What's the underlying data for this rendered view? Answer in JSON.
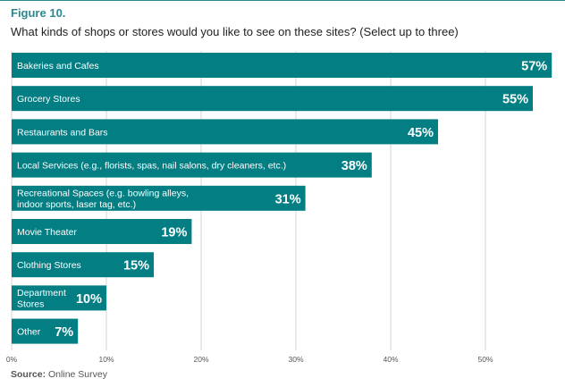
{
  "header": {
    "figure_label": "Figure 10.",
    "question": "What kinds of shops or stores would you like to see on these sites? (Select up to three)"
  },
  "source": {
    "label": "Source:",
    "text": "Online Survey"
  },
  "colors": {
    "bar": "#037f84",
    "accent": "#2a8a8f",
    "gridline": "#d6d6d6",
    "bar_text": "#ffffff"
  },
  "chart_data": {
    "type": "bar",
    "orientation": "horizontal",
    "title": "",
    "xlabel": "",
    "ylabel": "",
    "xlim": [
      0,
      57
    ],
    "x_ticks": [
      0,
      10,
      20,
      30,
      40,
      50
    ],
    "x_tick_labels": [
      "0%",
      "10%",
      "20%",
      "30%",
      "40%",
      "50%"
    ],
    "grid": true,
    "categories": [
      [
        "Bakeries and Cafes"
      ],
      [
        "Grocery Stores"
      ],
      [
        "Restaurants and Bars"
      ],
      [
        "Local Services (e.g., florists, spas, nail salons, dry cleaners, etc.)"
      ],
      [
        "Recreational Spaces (e.g. bowling alleys,",
        "indoor sports, laser tag, etc.)"
      ],
      [
        "Movie Theater"
      ],
      [
        "Clothing Stores"
      ],
      [
        "Department",
        "Stores"
      ],
      [
        "Other"
      ]
    ],
    "values": [
      57,
      55,
      45,
      38,
      31,
      19,
      15,
      10,
      7
    ],
    "value_labels": [
      "57%",
      "55%",
      "45%",
      "38%",
      "31%",
      "19%",
      "15%",
      "10%",
      "7%"
    ]
  }
}
